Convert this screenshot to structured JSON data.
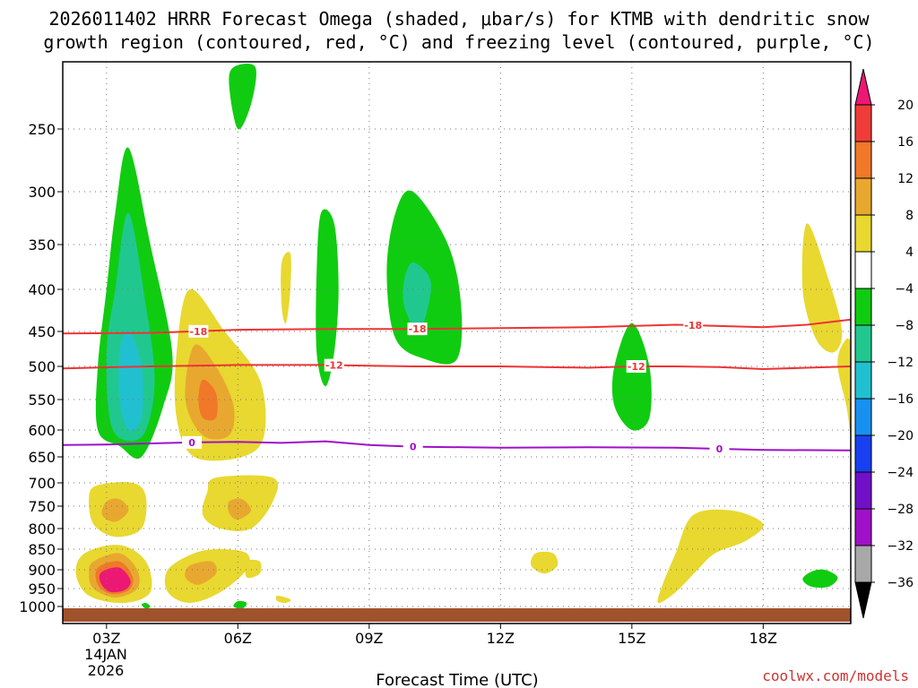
{
  "chart_data": {
    "type": "time-height contour",
    "title_line1": "2026011402 HRRR Forecast Omega (shaded, μbar/s) for KTMB with dendritic snow",
    "title_line2": "growth region (contoured, red, °C) and freezing level (contoured, purple, °C)",
    "xlabel": "Forecast Time (UTC)",
    "date_label": [
      "14JAN",
      "2026"
    ],
    "credit": "coolwx.com/models",
    "x_ticks": [
      {
        "hour": 3,
        "label": "03Z"
      },
      {
        "hour": 6,
        "label": "06Z"
      },
      {
        "hour": 9,
        "label": "09Z"
      },
      {
        "hour": 12,
        "label": "12Z"
      },
      {
        "hour": 15,
        "label": "15Z"
      },
      {
        "hour": 18,
        "label": "18Z"
      }
    ],
    "xlim": [
      2,
      20
    ],
    "y_ticks": [
      250,
      300,
      350,
      400,
      450,
      500,
      550,
      600,
      650,
      700,
      750,
      800,
      850,
      900,
      950,
      1000
    ],
    "ylim_hPa": [
      1000,
      200
    ],
    "colorbar": {
      "labels": [
        "20",
        "16",
        "12",
        "8",
        "4",
        "−4",
        "−8",
        "−12",
        "−16",
        "−20",
        "−24",
        "−28",
        "−32",
        "−36"
      ],
      "levels": [
        20,
        16,
        12,
        8,
        4,
        -4,
        -8,
        -12,
        -16,
        -20,
        -24,
        -28,
        -32,
        -36
      ],
      "colors": [
        "#ec1873",
        "#f03c38",
        "#f07828",
        "#e8a830",
        "#e8d830",
        "#ffffff",
        "#10cc10",
        "#20c890",
        "#20c0d0",
        "#1890f0",
        "#1840f0",
        "#7010c8",
        "#a010c8",
        "#a8a8a8",
        "#000000"
      ]
    },
    "contours": [
      {
        "name": "dgz-top",
        "label": "-18",
        "color": "#ee3333",
        "points": [
          [
            2,
            453
          ],
          [
            4,
            452
          ],
          [
            6,
            448
          ],
          [
            8,
            447
          ],
          [
            10,
            447
          ],
          [
            12,
            446
          ],
          [
            14,
            445
          ],
          [
            16,
            442
          ],
          [
            18,
            445
          ],
          [
            19,
            442
          ],
          [
            20,
            436
          ]
        ],
        "label_hours": [
          5.1,
          10.1,
          16.4
        ]
      },
      {
        "name": "dgz-bottom",
        "label": "-12",
        "color": "#ee3333",
        "points": [
          [
            2,
            503
          ],
          [
            4,
            500
          ],
          [
            6,
            498
          ],
          [
            8,
            498
          ],
          [
            10,
            500
          ],
          [
            12,
            500
          ],
          [
            14,
            502
          ],
          [
            15,
            500
          ],
          [
            16,
            500
          ],
          [
            17,
            501
          ],
          [
            18,
            504
          ],
          [
            19,
            502
          ],
          [
            20,
            500
          ]
        ],
        "label_hours": [
          8.2,
          15.1
        ]
      },
      {
        "name": "freezing-level",
        "label": "0",
        "color": "#a010c8",
        "points": [
          [
            2,
            628
          ],
          [
            3,
            627
          ],
          [
            4,
            625
          ],
          [
            5,
            623
          ],
          [
            6,
            622
          ],
          [
            7,
            624
          ],
          [
            8,
            621
          ],
          [
            9,
            628
          ],
          [
            10,
            631
          ],
          [
            12,
            633
          ],
          [
            14,
            632
          ],
          [
            16,
            633
          ],
          [
            18,
            637
          ],
          [
            20,
            638
          ]
        ],
        "label_hours": [
          4.95,
          10,
          17
        ]
      }
    ],
    "omega_regions": [
      {
        "level": -8,
        "points": [
          [
            3.5,
            265
          ],
          [
            4.0,
            350
          ],
          [
            4.5,
            480
          ],
          [
            4.3,
            560
          ],
          [
            3.8,
            650
          ],
          [
            3.3,
            630
          ],
          [
            2.8,
            600
          ],
          [
            2.8,
            500
          ],
          [
            3.0,
            400
          ],
          [
            3.2,
            320
          ]
        ]
      },
      {
        "level": -12,
        "points": [
          [
            3.5,
            320
          ],
          [
            3.9,
            420
          ],
          [
            4.1,
            520
          ],
          [
            3.9,
            600
          ],
          [
            3.5,
            620
          ],
          [
            3.1,
            590
          ],
          [
            3.0,
            480
          ],
          [
            3.2,
            400
          ]
        ]
      },
      {
        "level": -16,
        "points": [
          [
            3.5,
            450
          ],
          [
            3.8,
            500
          ],
          [
            3.8,
            580
          ],
          [
            3.5,
            600
          ],
          [
            3.3,
            550
          ],
          [
            3.3,
            480
          ]
        ]
      },
      {
        "level": -8,
        "points": [
          [
            5.9,
            200
          ],
          [
            6.4,
            200
          ],
          [
            6.3,
            230
          ],
          [
            6.0,
            250
          ],
          [
            5.8,
            215
          ]
        ]
      },
      {
        "level": -8,
        "points": [
          [
            7.9,
            320
          ],
          [
            8.2,
            330
          ],
          [
            8.3,
            400
          ],
          [
            8.2,
            480
          ],
          [
            8.0,
            530
          ],
          [
            7.8,
            480
          ],
          [
            7.8,
            380
          ]
        ]
      },
      {
        "level": -8,
        "points": [
          [
            10.0,
            300
          ],
          [
            10.8,
            350
          ],
          [
            11.1,
            420
          ],
          [
            11.0,
            490
          ],
          [
            10.3,
            490
          ],
          [
            9.6,
            460
          ],
          [
            9.4,
            380
          ],
          [
            9.6,
            320
          ]
        ]
      },
      {
        "level": -12,
        "points": [
          [
            10.0,
            370
          ],
          [
            10.4,
            390
          ],
          [
            10.3,
            430
          ],
          [
            10.1,
            450
          ],
          [
            9.8,
            420
          ],
          [
            9.8,
            390
          ]
        ]
      },
      {
        "level": -8,
        "points": [
          [
            15.0,
            440
          ],
          [
            15.4,
            500
          ],
          [
            15.4,
            580
          ],
          [
            15.0,
            600
          ],
          [
            14.6,
            560
          ],
          [
            14.6,
            500
          ]
        ]
      },
      {
        "level": -8,
        "points": [
          [
            19.4,
            900
          ],
          [
            19.7,
            920
          ],
          [
            19.5,
            945
          ],
          [
            19.1,
            945
          ],
          [
            18.9,
            925
          ],
          [
            19.1,
            905
          ]
        ]
      },
      {
        "level": -8,
        "points": [
          [
            3.9,
            990
          ],
          [
            4.0,
            1000
          ],
          [
            3.9,
            1005
          ],
          [
            3.8,
            995
          ]
        ]
      },
      {
        "level": -8,
        "points": [
          [
            6.0,
            985
          ],
          [
            6.2,
            990
          ],
          [
            6.1,
            1005
          ],
          [
            5.9,
            1000
          ]
        ]
      },
      {
        "level": 4,
        "points": [
          [
            2.8,
            705
          ],
          [
            3.6,
            700
          ],
          [
            3.9,
            730
          ],
          [
            3.8,
            800
          ],
          [
            3.2,
            820
          ],
          [
            2.7,
            790
          ],
          [
            2.6,
            730
          ]
        ]
      },
      {
        "level": 8,
        "points": [
          [
            3.0,
            740
          ],
          [
            3.3,
            735
          ],
          [
            3.5,
            760
          ],
          [
            3.2,
            785
          ],
          [
            2.9,
            770
          ]
        ]
      },
      {
        "level": 4,
        "points": [
          [
            2.5,
            860
          ],
          [
            3.3,
            840
          ],
          [
            3.9,
            880
          ],
          [
            4.0,
            960
          ],
          [
            3.4,
            990
          ],
          [
            2.6,
            970
          ],
          [
            2.3,
            910
          ]
        ]
      },
      {
        "level": 8,
        "points": [
          [
            2.7,
            880
          ],
          [
            3.3,
            860
          ],
          [
            3.7,
            900
          ],
          [
            3.7,
            950
          ],
          [
            3.2,
            975
          ],
          [
            2.7,
            950
          ],
          [
            2.6,
            910
          ]
        ]
      },
      {
        "level": 12,
        "points": [
          [
            2.8,
            895
          ],
          [
            3.3,
            880
          ],
          [
            3.6,
            920
          ],
          [
            3.5,
            955
          ],
          [
            3.1,
            965
          ],
          [
            2.8,
            940
          ]
        ]
      },
      {
        "level": 20,
        "points": [
          [
            2.9,
            905
          ],
          [
            3.3,
            895
          ],
          [
            3.55,
            930
          ],
          [
            3.4,
            955
          ],
          [
            3.05,
            958
          ],
          [
            2.85,
            930
          ]
        ]
      },
      {
        "level": 4,
        "points": [
          [
            4.9,
            400
          ],
          [
            5.7,
            450
          ],
          [
            6.5,
            520
          ],
          [
            6.6,
            610
          ],
          [
            6.1,
            650
          ],
          [
            5.0,
            650
          ],
          [
            4.6,
            580
          ],
          [
            4.6,
            480
          ]
        ]
      },
      {
        "level": 8,
        "points": [
          [
            5.0,
            470
          ],
          [
            5.5,
            500
          ],
          [
            5.9,
            560
          ],
          [
            5.8,
            610
          ],
          [
            5.2,
            610
          ],
          [
            4.8,
            550
          ]
        ]
      },
      {
        "level": 12,
        "points": [
          [
            5.2,
            520
          ],
          [
            5.5,
            540
          ],
          [
            5.5,
            580
          ],
          [
            5.2,
            580
          ],
          [
            5.1,
            550
          ]
        ]
      },
      {
        "level": 4,
        "points": [
          [
            5.5,
            690
          ],
          [
            6.8,
            690
          ],
          [
            6.8,
            740
          ],
          [
            6.3,
            800
          ],
          [
            5.6,
            800
          ],
          [
            5.2,
            770
          ],
          [
            5.3,
            720
          ]
        ]
      },
      {
        "level": 8,
        "points": [
          [
            5.8,
            740
          ],
          [
            6.1,
            735
          ],
          [
            6.3,
            760
          ],
          [
            6.0,
            780
          ],
          [
            5.8,
            765
          ]
        ]
      },
      {
        "level": 4,
        "points": [
          [
            5.0,
            860
          ],
          [
            5.6,
            850
          ],
          [
            6.2,
            860
          ],
          [
            6.2,
            900
          ],
          [
            5.6,
            960
          ],
          [
            4.9,
            990
          ],
          [
            4.4,
            960
          ],
          [
            4.4,
            900
          ]
        ]
      },
      {
        "level": 8,
        "points": [
          [
            4.9,
            890
          ],
          [
            5.4,
            880
          ],
          [
            5.5,
            910
          ],
          [
            5.1,
            940
          ],
          [
            4.8,
            920
          ]
        ]
      },
      {
        "level": 4,
        "points": [
          [
            6.2,
            880
          ],
          [
            6.5,
            880
          ],
          [
            6.5,
            910
          ],
          [
            6.2,
            920
          ]
        ]
      },
      {
        "level": 4,
        "points": [
          [
            7.0,
            370
          ],
          [
            7.2,
            360
          ],
          [
            7.2,
            400
          ],
          [
            7.1,
            440
          ],
          [
            7.0,
            420
          ]
        ]
      },
      {
        "level": 4,
        "points": [
          [
            6.9,
            970
          ],
          [
            7.2,
            980
          ],
          [
            7.1,
            990
          ],
          [
            6.9,
            985
          ]
        ]
      },
      {
        "level": 4,
        "points": [
          [
            12.8,
            860
          ],
          [
            13.2,
            860
          ],
          [
            13.3,
            890
          ],
          [
            13.0,
            910
          ],
          [
            12.7,
            890
          ]
        ]
      },
      {
        "level": 4,
        "points": [
          [
            16.4,
            770
          ],
          [
            17.3,
            760
          ],
          [
            18.0,
            790
          ],
          [
            17.6,
            830
          ],
          [
            16.9,
            860
          ],
          [
            16.5,
            900
          ],
          [
            16.0,
            960
          ],
          [
            15.6,
            990
          ],
          [
            15.7,
            940
          ],
          [
            16.0,
            860
          ]
        ]
      },
      {
        "level": 4,
        "points": [
          [
            19.0,
            330
          ],
          [
            19.5,
            390
          ],
          [
            19.8,
            450
          ],
          [
            19.6,
            480
          ],
          [
            19.2,
            460
          ],
          [
            18.9,
            400
          ]
        ]
      },
      {
        "level": 4,
        "points": [
          [
            19.8,
            470
          ],
          [
            20.0,
            470
          ],
          [
            20.0,
            600
          ],
          [
            19.9,
            560
          ],
          [
            19.7,
            500
          ]
        ]
      }
    ]
  }
}
